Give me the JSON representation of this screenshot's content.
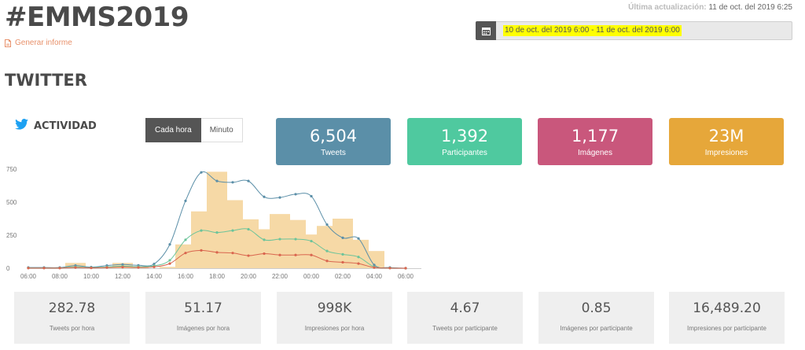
{
  "header": {
    "hashtag": "#EMMS2019",
    "report_link": "Generar informe",
    "updated_label": "Última actualización:",
    "updated_value": "11 de oct. del 2019 6:25",
    "date_range": "10 de oct. del 2019 6:00 - 11 de oct. del 2019 6:00"
  },
  "section": {
    "title": "TWITTER"
  },
  "activity": {
    "title": "ACTIVIDAD",
    "toggle": {
      "hourly": "Cada hora",
      "minute": "Minuto"
    }
  },
  "stats": [
    {
      "value": "6,504",
      "caption": "Tweets",
      "color": "#5b8fa8"
    },
    {
      "value": "1,392",
      "caption": "Participantes",
      "color": "#4fc99f"
    },
    {
      "value": "1,177",
      "caption": "Imágenes",
      "color": "#c9577c"
    },
    {
      "value": "23M",
      "caption": "Impresiones",
      "color": "#e6a73a"
    }
  ],
  "metrics": [
    {
      "value": "282.78",
      "caption": "Tweets por hora"
    },
    {
      "value": "51.17",
      "caption": "Imágenes por hora"
    },
    {
      "value": "998K",
      "caption": "Impresiones por hora"
    },
    {
      "value": "4.67",
      "caption": "Tweets por participante"
    },
    {
      "value": "0.85",
      "caption": "Imágenes por participante"
    },
    {
      "value": "16,489.20",
      "caption": "Impresiones por participante"
    }
  ],
  "colors": {
    "report_icon": "#e8916b",
    "twitter_blue": "#1da1f2",
    "bars": "#f6d9a6",
    "tweets_line": "#5b8fa8",
    "participants_line": "#6cc49a",
    "images_line": "#d9654e"
  },
  "chart_data": {
    "type": "bar",
    "grid": false,
    "y_ticks": [
      "0",
      "250",
      "500",
      "750"
    ],
    "ylim": [
      0,
      750
    ],
    "x_ticks": [
      "06:00",
      "08:00",
      "10:00",
      "12:00",
      "14:00",
      "16:00",
      "18:00",
      "20:00",
      "22:00",
      "00:00",
      "02:00",
      "04:00",
      "06:00"
    ],
    "bar_positions": [
      3,
      5,
      6,
      7,
      9,
      10,
      11,
      12,
      13,
      14,
      15,
      16,
      17,
      18,
      19,
      20,
      21,
      22
    ],
    "bar_values": [
      40,
      10,
      40,
      10,
      10,
      180,
      430,
      730,
      515,
      370,
      295,
      410,
      365,
      255,
      320,
      375,
      215,
      130
    ],
    "series": [
      {
        "key": "tweets",
        "x": [
          0,
          1,
          2,
          3,
          4,
          5,
          6,
          7,
          8,
          9,
          10,
          11,
          12,
          13,
          14,
          15,
          16,
          17,
          18,
          19,
          20,
          21,
          22,
          23,
          24
        ],
        "values": [
          5,
          5,
          5,
          20,
          8,
          20,
          28,
          22,
          32,
          180,
          510,
          725,
          660,
          650,
          660,
          540,
          535,
          560,
          545,
          330,
          230,
          225,
          25,
          5,
          0
        ]
      },
      {
        "key": "participants",
        "x": [
          0,
          1,
          2,
          3,
          4,
          5,
          6,
          7,
          8,
          9,
          10,
          11,
          12,
          13,
          14,
          15,
          16,
          17,
          18,
          19,
          20,
          21,
          22,
          23,
          24
        ],
        "values": [
          2,
          2,
          2,
          10,
          4,
          10,
          15,
          12,
          18,
          60,
          215,
          285,
          270,
          285,
          295,
          215,
          220,
          220,
          205,
          130,
          105,
          85,
          10,
          2,
          0
        ]
      },
      {
        "key": "images",
        "x": [
          0,
          1,
          2,
          3,
          4,
          5,
          6,
          7,
          8,
          9,
          10,
          11,
          12,
          13,
          14,
          15,
          16,
          17,
          18,
          19,
          20,
          21,
          22,
          23,
          24
        ],
        "values": [
          1,
          1,
          1,
          5,
          2,
          5,
          8,
          6,
          10,
          35,
          115,
          135,
          120,
          115,
          95,
          110,
          100,
          100,
          100,
          55,
          45,
          35,
          5,
          1,
          0
        ]
      }
    ]
  }
}
